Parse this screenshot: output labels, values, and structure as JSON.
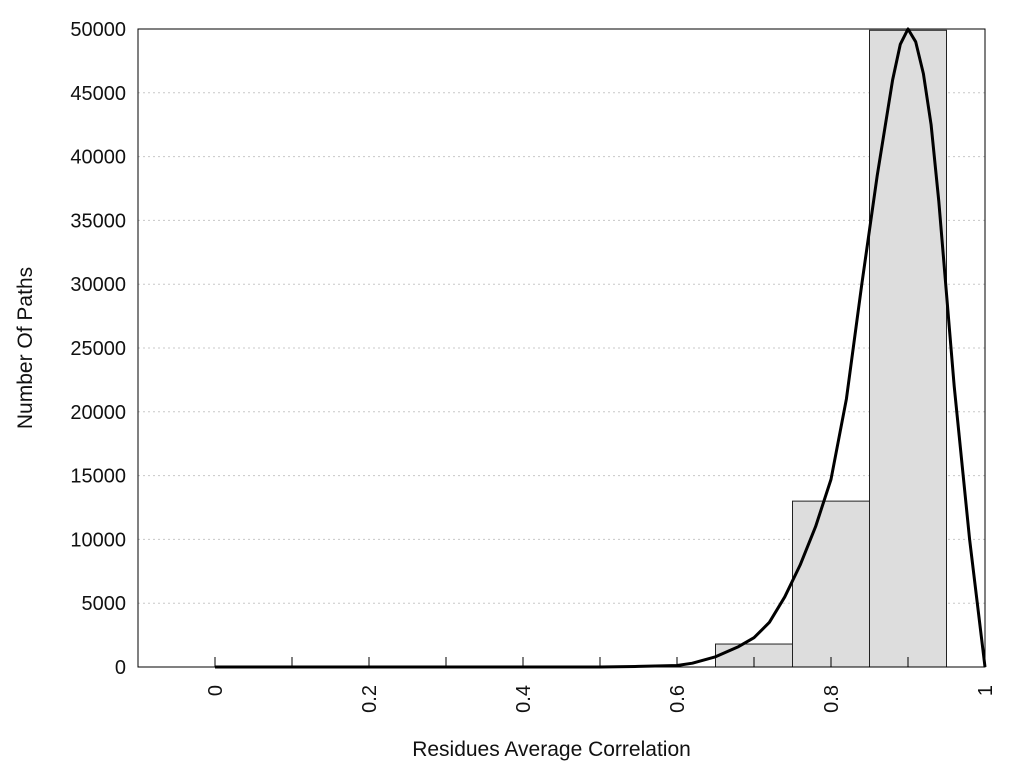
{
  "chart_data": {
    "type": "bar",
    "xlabel": "Residues Average Correlation",
    "ylabel": "Number Of Paths",
    "xlim": [
      -0.1,
      1.0
    ],
    "ylim": [
      0,
      50000
    ],
    "grid": "horizontal-dotted",
    "x_ticks": [
      {
        "value": 0,
        "label": "0"
      },
      {
        "value": 0.2,
        "label": "0.2"
      },
      {
        "value": 0.4,
        "label": "0.4"
      },
      {
        "value": 0.6,
        "label": "0.6"
      },
      {
        "value": 0.8,
        "label": "0.8"
      },
      {
        "value": 1.0,
        "label": "1"
      }
    ],
    "x_minor_ticks": [
      0.1,
      0.3,
      0.5,
      0.7,
      0.9
    ],
    "y_ticks": [
      {
        "value": 0,
        "label": "0"
      },
      {
        "value": 5000,
        "label": "5000"
      },
      {
        "value": 10000,
        "label": "10000"
      },
      {
        "value": 15000,
        "label": "15000"
      },
      {
        "value": 20000,
        "label": "20000"
      },
      {
        "value": 25000,
        "label": "25000"
      },
      {
        "value": 30000,
        "label": "30000"
      },
      {
        "value": 35000,
        "label": "35000"
      },
      {
        "value": 40000,
        "label": "40000"
      },
      {
        "value": 45000,
        "label": "45000"
      },
      {
        "value": 50000,
        "label": "50000"
      }
    ],
    "bars": [
      {
        "x0": 0.65,
        "x1": 0.75,
        "value": 1800
      },
      {
        "x0": 0.75,
        "x1": 0.85,
        "value": 13000
      },
      {
        "x0": 0.85,
        "x1": 0.95,
        "value": 49900
      }
    ],
    "fit_curve": {
      "x": [
        0,
        0.1,
        0.2,
        0.3,
        0.4,
        0.5,
        0.55,
        0.6,
        0.62,
        0.65,
        0.68,
        0.7,
        0.72,
        0.74,
        0.76,
        0.78,
        0.8,
        0.82,
        0.84,
        0.86,
        0.88,
        0.89,
        0.9,
        0.91,
        0.92,
        0.93,
        0.94,
        0.96,
        0.98,
        1.0
      ],
      "y": [
        0,
        0,
        0,
        0,
        0,
        0,
        50,
        120,
        300,
        800,
        1600,
        2300,
        3500,
        5500,
        8000,
        11000,
        14700,
        21000,
        30000,
        38500,
        46000,
        48800,
        50000,
        49000,
        46500,
        42500,
        36500,
        22000,
        10000,
        0
      ]
    },
    "colors": {
      "bar_fill": "#dddddd",
      "bar_stroke": "#222222",
      "curve": "#000000",
      "grid": "#c8c8c8"
    }
  }
}
